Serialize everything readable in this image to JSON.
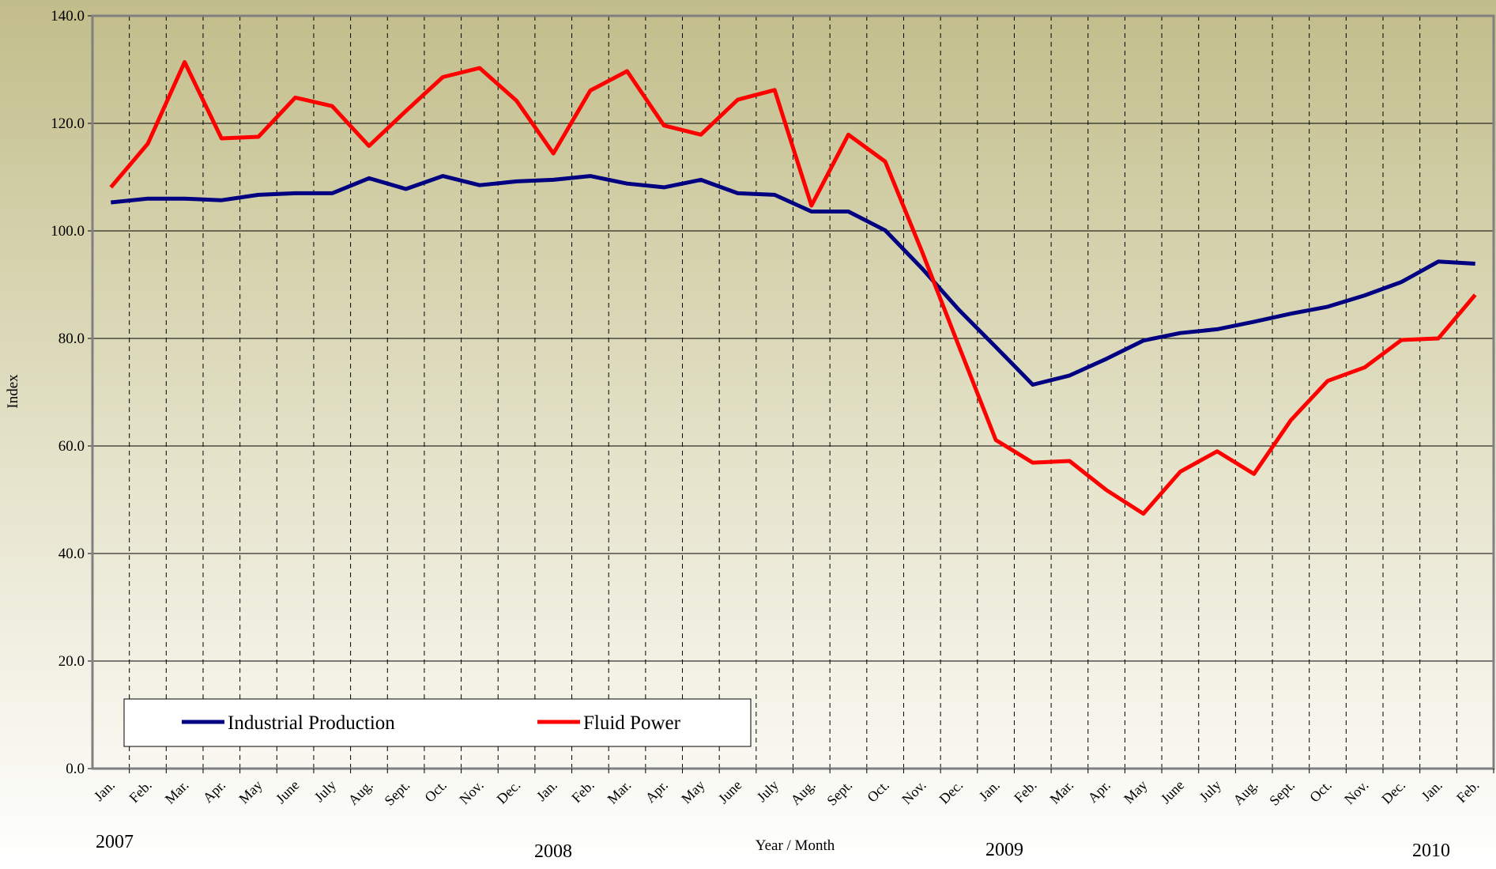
{
  "chart_data": {
    "type": "line",
    "x_label": "Year / Month",
    "y_label": "Index",
    "categories": [
      "Jan.",
      "Feb.",
      "Mar.",
      "Apr.",
      "May",
      "June",
      "July",
      "Aug.",
      "Sept.",
      "Oct.",
      "Nov.",
      "Dec.",
      "Jan.",
      "Feb.",
      "Mar.",
      "Apr.",
      "May",
      "June",
      "July",
      "Aug.",
      "Sept.",
      "Oct.",
      "Nov.",
      "Dec.",
      "Jan.",
      "Feb.",
      "Mar.",
      "Apr.",
      "May",
      "June",
      "July",
      "Aug.",
      "Sept.",
      "Oct.",
      "Nov.",
      "Dec.",
      "Jan.",
      "Feb."
    ],
    "annotations": [
      "2007",
      "2008",
      "2009",
      "2010"
    ],
    "series": [
      {
        "name": "Industrial Production",
        "color": "#000080",
        "values": [
          105.3,
          106,
          106,
          105.7,
          106.7,
          107,
          107,
          109.8,
          107.8,
          110.2,
          108.5,
          109.2,
          109.5,
          110.2,
          108.8,
          108.1,
          109.5,
          107,
          106.7,
          103.6,
          103.6,
          100.1,
          93,
          85.3,
          78.4,
          71.4,
          73.1,
          76.2,
          79.6,
          81,
          81.7,
          83.1,
          84.6,
          85.9,
          88,
          90.5,
          94.3,
          93.9
        ]
      },
      {
        "name": "Fluid Power",
        "color": "#ff0000",
        "values": [
          108.1,
          116.2,
          131.4,
          117.2,
          117.5,
          124.8,
          123.2,
          115.8,
          122.3,
          128.6,
          130.3,
          124.2,
          114.4,
          126.1,
          129.7,
          119.6,
          117.9,
          124.4,
          126.2,
          104.7,
          117.9,
          112.9,
          96.1,
          78.5,
          61.1,
          56.9,
          57.2,
          51.8,
          47.4,
          55.2,
          59,
          54.8,
          64.8,
          72.1,
          74.6,
          79.7,
          80,
          88.1
        ]
      }
    ],
    "ylim": [
      0,
      140
    ],
    "yticks": [
      {
        "value": 0,
        "label": "0.0"
      },
      {
        "value": 20,
        "label": "20.0"
      },
      {
        "value": 40,
        "label": "40.0"
      },
      {
        "value": 60,
        "label": "60.0"
      },
      {
        "value": 80,
        "label": "80.0"
      },
      {
        "value": 100,
        "label": "100.0"
      },
      {
        "value": 120,
        "label": "120.0"
      },
      {
        "value": 140,
        "label": "140.0"
      }
    ],
    "grid": true,
    "legend": "lower left"
  }
}
